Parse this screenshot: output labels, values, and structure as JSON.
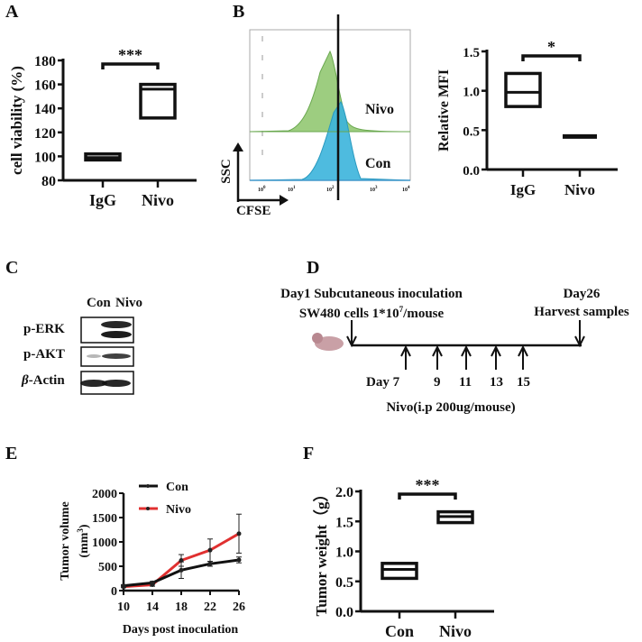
{
  "panel_letters": {
    "a": "A",
    "b": "B",
    "c": "C",
    "d": "D",
    "e": "E",
    "f": "F"
  },
  "chart_data": [
    {
      "id": "A",
      "type": "box",
      "ylabel": "cell viability (%)",
      "ylim": [
        80,
        180
      ],
      "yticks": [
        80,
        100,
        120,
        140,
        160,
        180
      ],
      "categories": [
        "IgG",
        "Nivo"
      ],
      "boxes": [
        {
          "min": 97,
          "median": 99,
          "max": 102
        },
        {
          "min": 132,
          "median": 156,
          "max": 160
        }
      ],
      "significance": "***"
    },
    {
      "id": "B-flow",
      "type": "histogram",
      "xlabel": "CFSE",
      "ylabel": "SSC",
      "xscale": "log",
      "xticks": [
        "10^0",
        "10^1",
        "10^2",
        "10^3",
        "10^4"
      ],
      "series": [
        {
          "name": "Nivo",
          "color": "#8cc46a"
        },
        {
          "name": "Con",
          "color": "#3bb4dc"
        }
      ]
    },
    {
      "id": "B-mfi",
      "type": "box",
      "ylabel": "Relative MFI",
      "ylim": [
        0,
        1.5
      ],
      "yticks": [
        "0.0",
        "0.5",
        "1.0",
        "1.5"
      ],
      "categories": [
        "IgG",
        "Nivo"
      ],
      "boxes": [
        {
          "min": 0.8,
          "median": 0.98,
          "max": 1.22
        },
        {
          "min": 0.42,
          "median": 0.42,
          "max": 0.42
        }
      ],
      "significance": "*"
    },
    {
      "id": "E",
      "type": "line",
      "xlabel": "Days post inoculation",
      "ylabel": "Tumor volume",
      "ylabel_unit": "(mm",
      "ylabel_sup": "3",
      "ylabel_close": ")",
      "ylim": [
        0,
        2000
      ],
      "yticks": [
        0,
        500,
        1000,
        1500,
        2000
      ],
      "x": [
        10,
        14,
        18,
        22,
        26
      ],
      "legend": "top-left",
      "series": [
        {
          "name": "Con",
          "color": "#111111",
          "values": [
            100,
            160,
            420,
            550,
            630
          ],
          "errors": [
            20,
            30,
            170,
            50,
            60
          ]
        },
        {
          "name": "Nivo",
          "color": "#e03030",
          "values": [
            80,
            120,
            620,
            830,
            1170
          ],
          "errors": [
            20,
            30,
            120,
            230,
            400
          ]
        }
      ]
    },
    {
      "id": "F",
      "type": "box",
      "ylabel": "Tumor weight（g）",
      "ylim": [
        0,
        2.0
      ],
      "yticks": [
        "0.0",
        "0.5",
        "1.0",
        "1.5",
        "2.0"
      ],
      "categories": [
        "Con",
        "Nivo"
      ],
      "boxes": [
        {
          "min": 0.55,
          "median": 0.7,
          "max": 0.8
        },
        {
          "min": 1.48,
          "median": 1.58,
          "max": 1.66
        }
      ],
      "significance": "***"
    }
  ],
  "blot": {
    "lanes": [
      "Con",
      "Nivo"
    ],
    "rows": [
      {
        "label": "p-ERK"
      },
      {
        "label": "p-AKT"
      },
      {
        "label_prefix": "β",
        "label": "-Actin"
      }
    ]
  },
  "schedule": {
    "start_line1": "Day1 Subcutaneous inoculation",
    "start_line2a": "SW480 cells 1*10",
    "start_line2_sup": "7",
    "start_line2b": "/mouse",
    "end_line1": "Day26",
    "end_line2": "Harvest samples",
    "doses": [
      "Day 7",
      "9",
      "11",
      "13",
      "15"
    ],
    "treatment": "Nivo(i.p 200ug/mouse)"
  }
}
